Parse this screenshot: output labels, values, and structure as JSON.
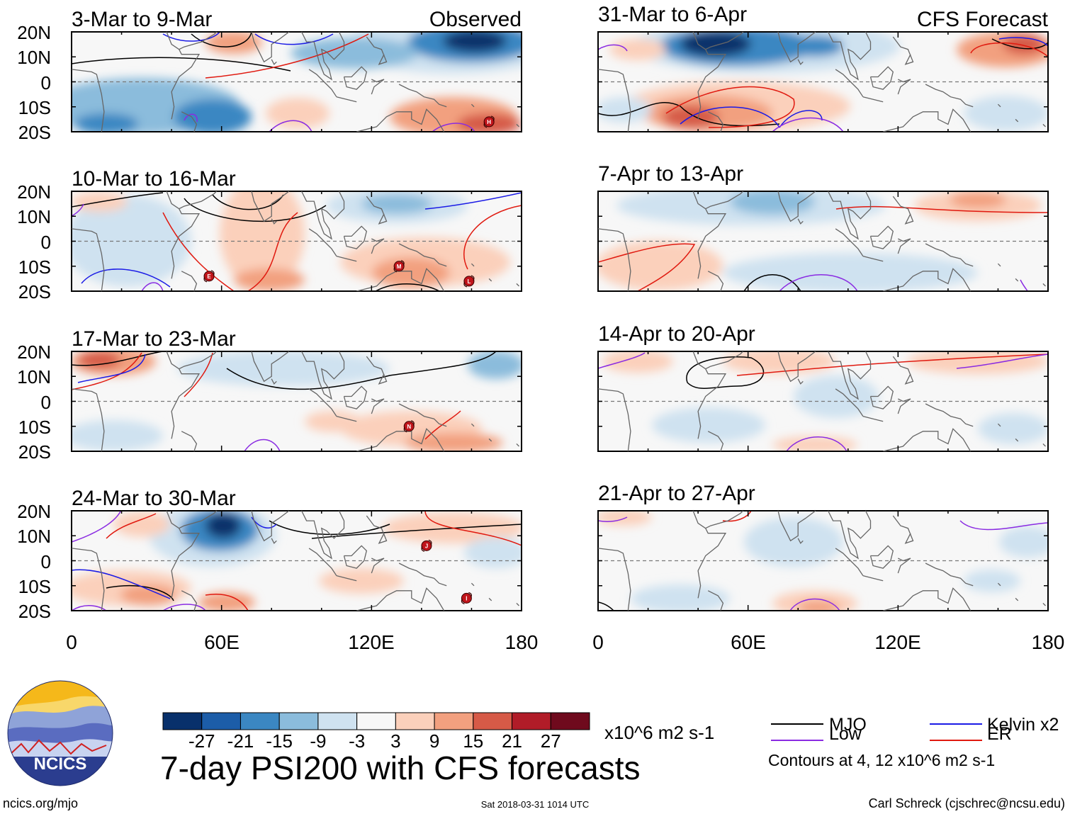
{
  "title": "7-day PSI200 with CFS forecasts",
  "site": "ncics.org/mjo",
  "timestamp": "Sat 2018-03-31 1014 UTC",
  "credit": "Carl Schreck (cjschrec@ncsu.edu)",
  "logo_text": "NCICS",
  "columns": {
    "left_label": "Observed",
    "right_label": "CFS Forecast"
  },
  "chart_data": {
    "type": "heatmap",
    "variable": "200-hPa streamfunction anomaly (PSI200), 7-day mean",
    "units": "x10^6 m2 s-1",
    "xlim": [
      0,
      180
    ],
    "ylim": [
      -20,
      20
    ],
    "x_ticks": [
      "0",
      "60E",
      "120E",
      "180"
    ],
    "y_ticks": [
      "20N",
      "10N",
      "0",
      "10S",
      "20S"
    ],
    "colorbar": {
      "levels": [
        "-27",
        "-21",
        "-15",
        "-9",
        "-3",
        "3",
        "9",
        "15",
        "21",
        "27"
      ],
      "colors": [
        "#08306b",
        "#1c5da8",
        "#3b87c2",
        "#8bbcdc",
        "#cfe2f0",
        "#f7f7f7",
        "#fbd0bb",
        "#f2a07f",
        "#d65a47",
        "#b11c28",
        "#6f0a1d"
      ]
    },
    "legend": [
      {
        "label": "MJO",
        "color": "#000000"
      },
      {
        "label": "Kelvin x2",
        "color": "#1a1ae6"
      },
      {
        "label": "Low",
        "color": "#8a2be2"
      },
      {
        "label": "ER",
        "color": "#e0190f"
      }
    ],
    "contour_note": "Contours at 4, 12 x10^6 m2 s-1",
    "panels": [
      {
        "id": "obs-1",
        "period": "3-Mar to 9-Mar",
        "kind": "observed",
        "storms": [
          {
            "lon": 167,
            "lat": -16,
            "label": "H"
          }
        ]
      },
      {
        "id": "obs-2",
        "period": "10-Mar to 16-Mar",
        "kind": "observed",
        "storms": [
          {
            "lon": 55,
            "lat": -14,
            "label": "E"
          },
          {
            "lon": 131,
            "lat": -10,
            "label": "M"
          },
          {
            "lon": 159,
            "lat": -16,
            "label": "L"
          }
        ]
      },
      {
        "id": "obs-3",
        "period": "17-Mar to 23-Mar",
        "kind": "observed",
        "storms": [
          {
            "lon": 135,
            "lat": -10,
            "label": "N"
          }
        ]
      },
      {
        "id": "obs-4",
        "period": "24-Mar to 30-Mar",
        "kind": "observed",
        "storms": [
          {
            "lon": 142,
            "lat": 6,
            "label": "J"
          },
          {
            "lon": 158,
            "lat": -15,
            "label": "I"
          }
        ]
      },
      {
        "id": "fc-1",
        "period": "31-Mar to 6-Apr",
        "kind": "forecast",
        "storms": []
      },
      {
        "id": "fc-2",
        "period": "7-Apr to 13-Apr",
        "kind": "forecast",
        "storms": []
      },
      {
        "id": "fc-3",
        "period": "14-Apr to 20-Apr",
        "kind": "forecast",
        "storms": []
      },
      {
        "id": "fc-4",
        "period": "21-Apr to 27-Apr",
        "kind": "forecast",
        "storms": []
      }
    ]
  }
}
